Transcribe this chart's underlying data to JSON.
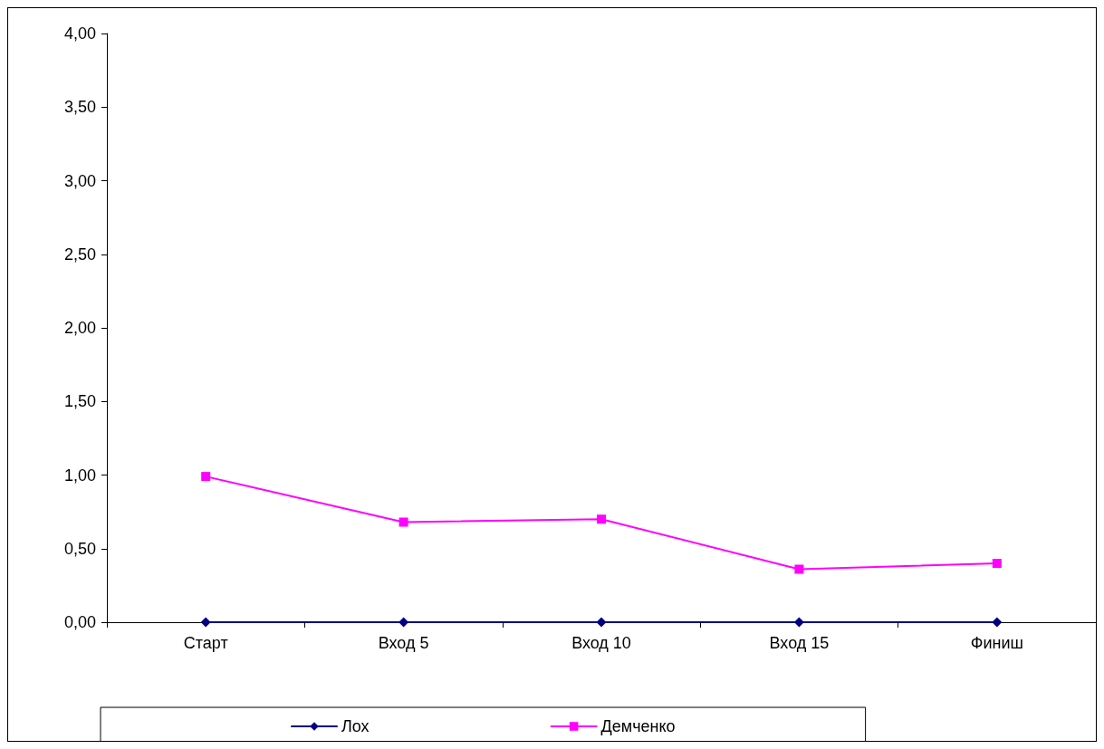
{
  "chart_data": {
    "type": "line",
    "categories": [
      "Старт",
      "Вход 5",
      "Вход 10",
      "Вход 15",
      "Финиш"
    ],
    "series": [
      {
        "name": "Лох",
        "color": "#000080",
        "marker": "diamond",
        "values": [
          0,
          0,
          0,
          0,
          0
        ]
      },
      {
        "name": "Демченко",
        "color": "#ff00ff",
        "marker": "square",
        "values": [
          0.99,
          0.68,
          0.7,
          0.36,
          0.4
        ]
      }
    ],
    "ylim": [
      0,
      4
    ],
    "yticks": [
      {
        "value": 0,
        "label": "0,00"
      },
      {
        "value": 0.5,
        "label": "0,50"
      },
      {
        "value": 1,
        "label": "1,00"
      },
      {
        "value": 1.5,
        "label": "1,50"
      },
      {
        "value": 2,
        "label": "2,00"
      },
      {
        "value": 2.5,
        "label": "2,50"
      },
      {
        "value": 3,
        "label": "3,00"
      },
      {
        "value": 3.5,
        "label": "3,50"
      },
      {
        "value": 4,
        "label": "4,00"
      }
    ],
    "grid": false,
    "legend": "bottom",
    "line_style": "solid"
  }
}
